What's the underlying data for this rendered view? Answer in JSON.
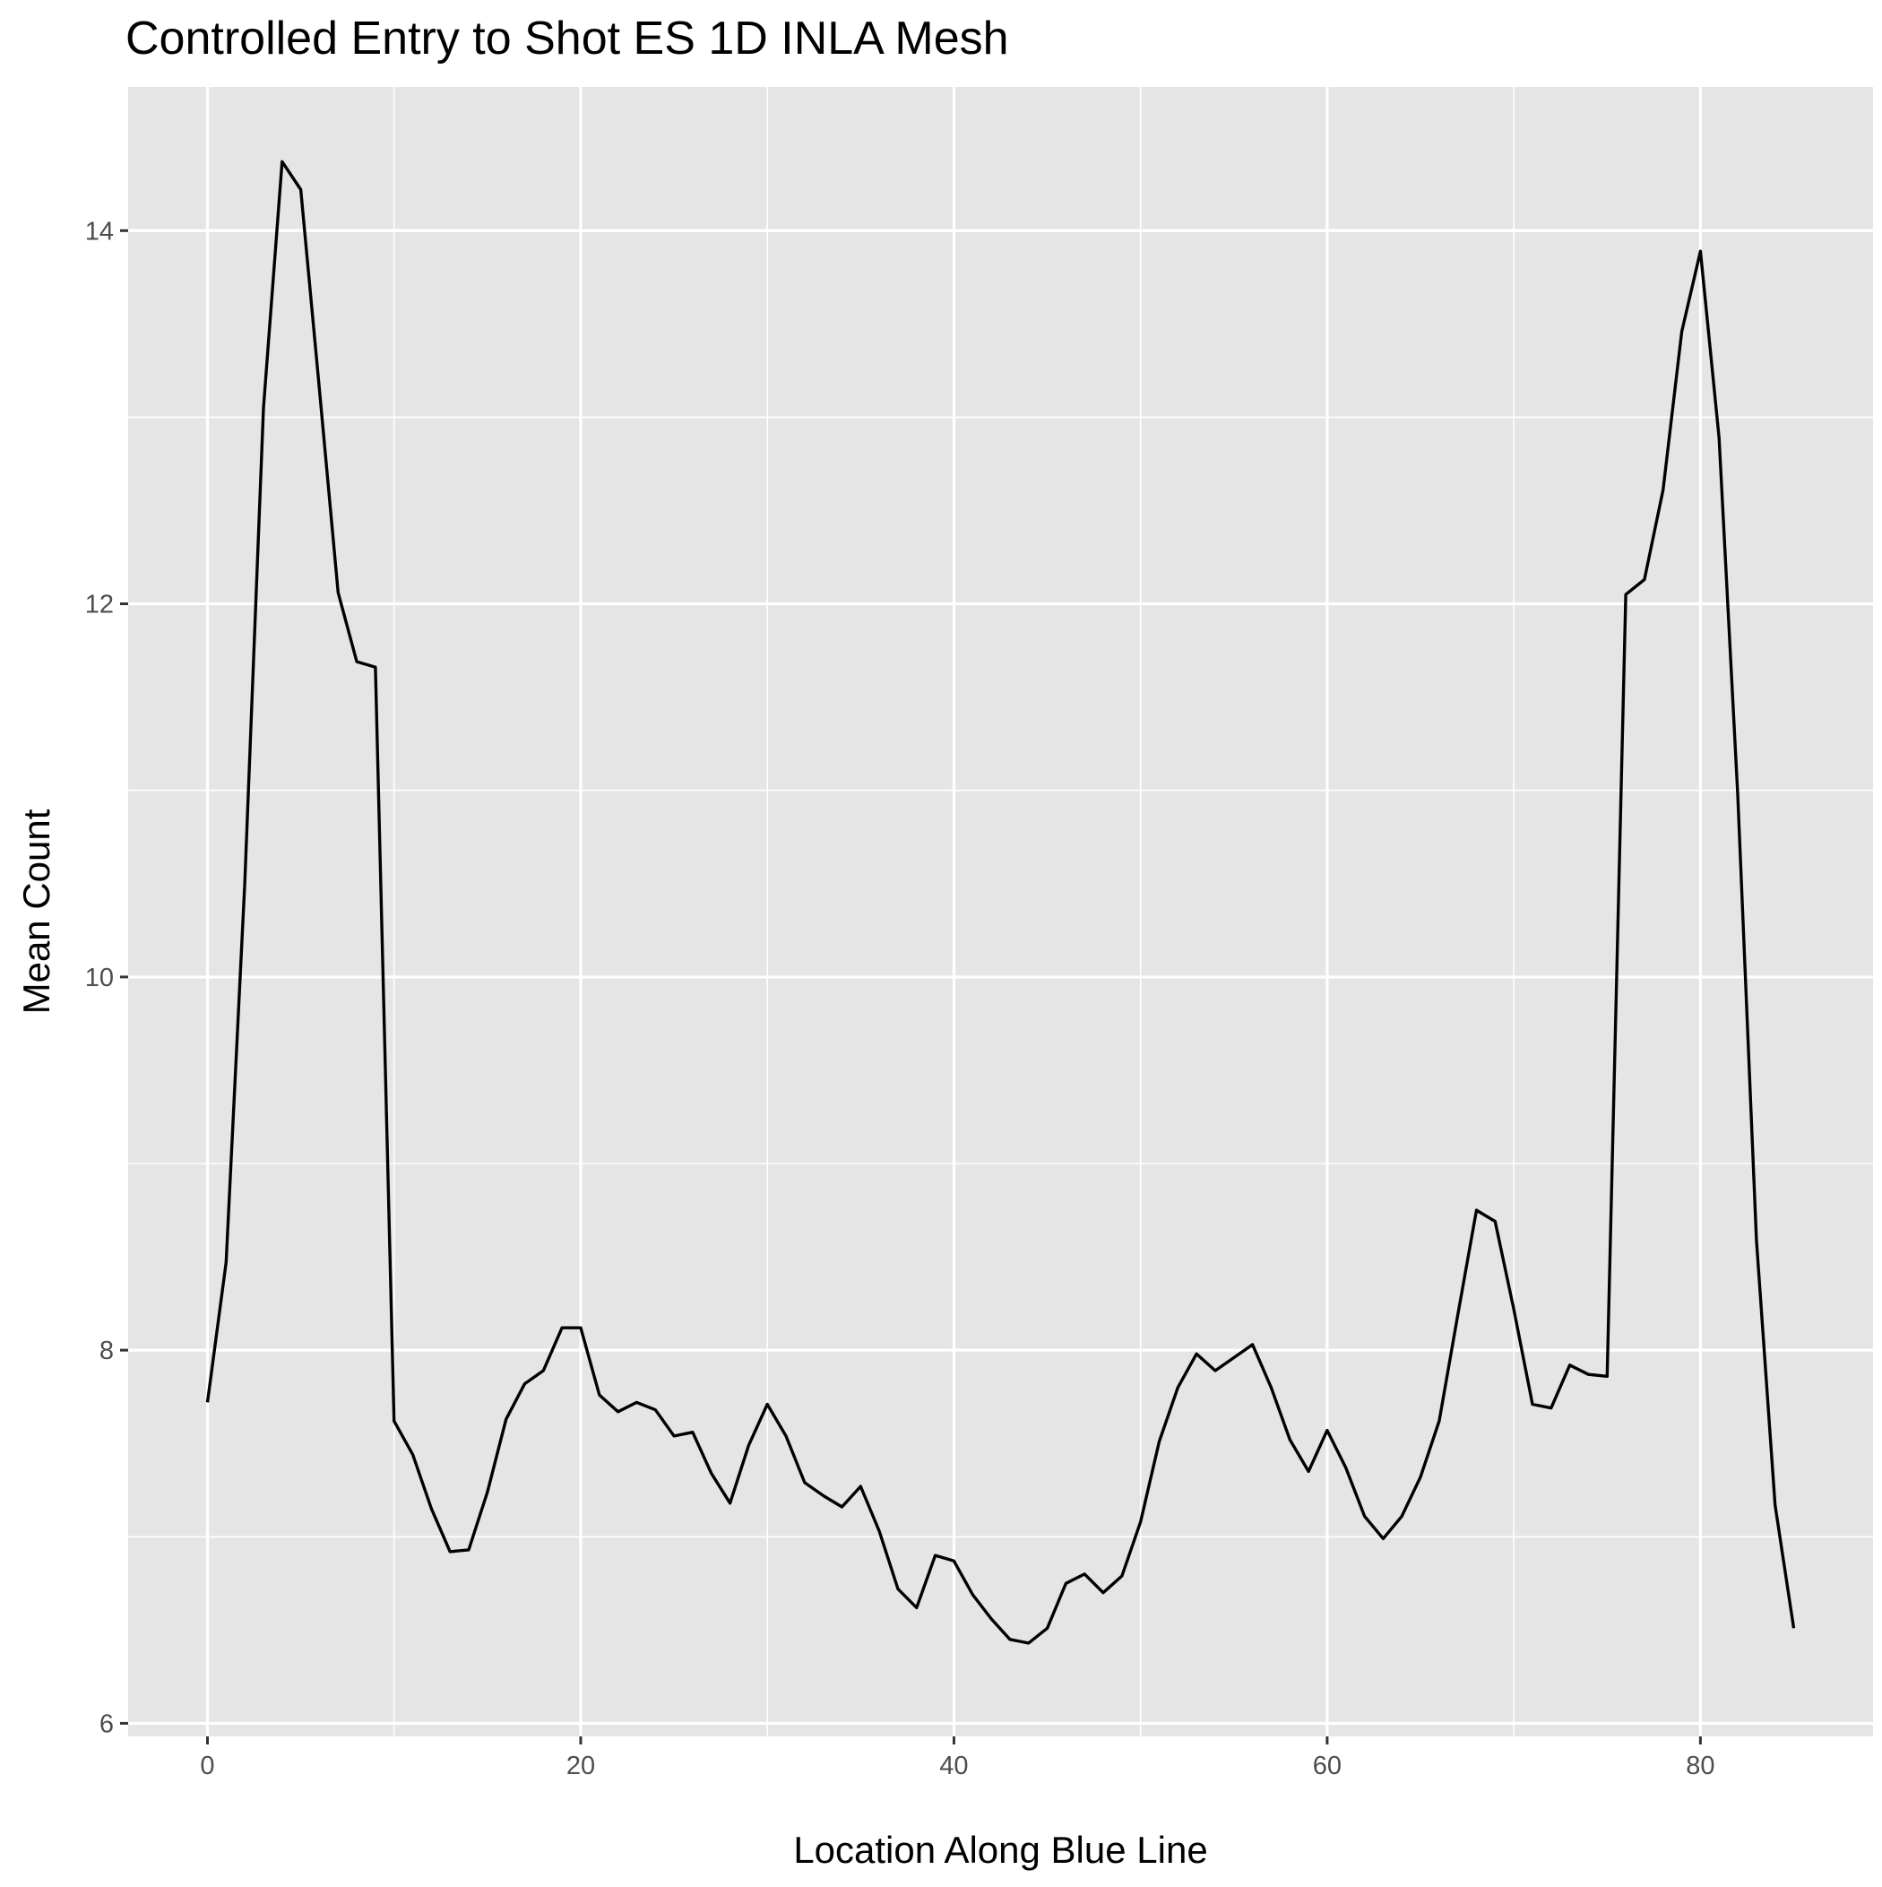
{
  "chart_data": {
    "type": "line",
    "title": "Controlled Entry to Shot ES 1D INLA Mesh",
    "xlabel": "Location Along Blue Line",
    "ylabel": "Mean Count",
    "xlim": [
      -4.25,
      89.25
    ],
    "ylim": [
      5.93,
      14.77
    ],
    "xticks": [
      0,
      20,
      40,
      60,
      80
    ],
    "xtick_labels": [
      "0",
      "20",
      "40",
      "60",
      "80"
    ],
    "xminor": [
      10,
      30,
      50,
      70
    ],
    "yticks": [
      6,
      8,
      10,
      12,
      14
    ],
    "ytick_labels": [
      "6",
      "8",
      "10",
      "12",
      "14"
    ],
    "yminor": [
      7,
      9,
      11,
      13
    ],
    "grid": true,
    "legend": "none",
    "colors": {
      "panel": "#e5e5e5",
      "grid": "#ffffff",
      "line": "#000000",
      "tick": "#333333"
    },
    "series": [
      {
        "x": [
          0,
          1,
          2,
          3,
          4,
          5,
          6,
          7,
          8,
          9,
          10,
          11,
          12,
          13,
          14,
          15,
          16,
          17,
          18,
          19,
          20,
          21,
          22,
          23,
          24,
          25,
          26,
          27,
          28,
          29,
          30,
          31,
          32,
          33,
          34,
          35,
          36,
          37,
          38,
          39,
          40,
          41,
          42,
          43,
          44,
          45,
          46,
          47,
          48,
          49,
          50,
          51,
          52,
          53,
          54,
          55,
          56,
          57,
          58,
          59,
          60,
          61,
          62,
          63,
          64,
          65,
          66,
          67,
          68,
          69,
          70,
          71,
          72,
          73,
          74,
          75,
          76,
          77,
          78,
          79,
          80,
          81,
          82,
          83,
          84,
          85
        ],
        "y": [
          7.72,
          8.47,
          10.5,
          13.05,
          14.37,
          14.22,
          13.15,
          12.06,
          11.69,
          11.66,
          7.62,
          7.44,
          7.15,
          6.92,
          6.93,
          7.24,
          7.63,
          7.82,
          7.89,
          8.12,
          8.12,
          7.76,
          7.67,
          7.72,
          7.68,
          7.54,
          7.56,
          7.34,
          7.18,
          7.49,
          7.71,
          7.54,
          7.29,
          7.22,
          7.16,
          7.27,
          7.03,
          6.72,
          6.62,
          6.9,
          6.87,
          6.69,
          6.56,
          6.45,
          6.43,
          6.51,
          6.75,
          6.8,
          6.7,
          6.79,
          7.08,
          7.51,
          7.8,
          7.98,
          7.89,
          7.96,
          8.03,
          7.8,
          7.52,
          7.35,
          7.57,
          7.37,
          7.11,
          6.99,
          7.11,
          7.32,
          7.62,
          8.19,
          8.75,
          8.69,
          8.22,
          7.71,
          7.69,
          7.92,
          7.87,
          7.86,
          12.05,
          12.13,
          12.61,
          13.46,
          13.89,
          12.89,
          10.98,
          8.59,
          7.17,
          6.51
        ]
      }
    ]
  }
}
